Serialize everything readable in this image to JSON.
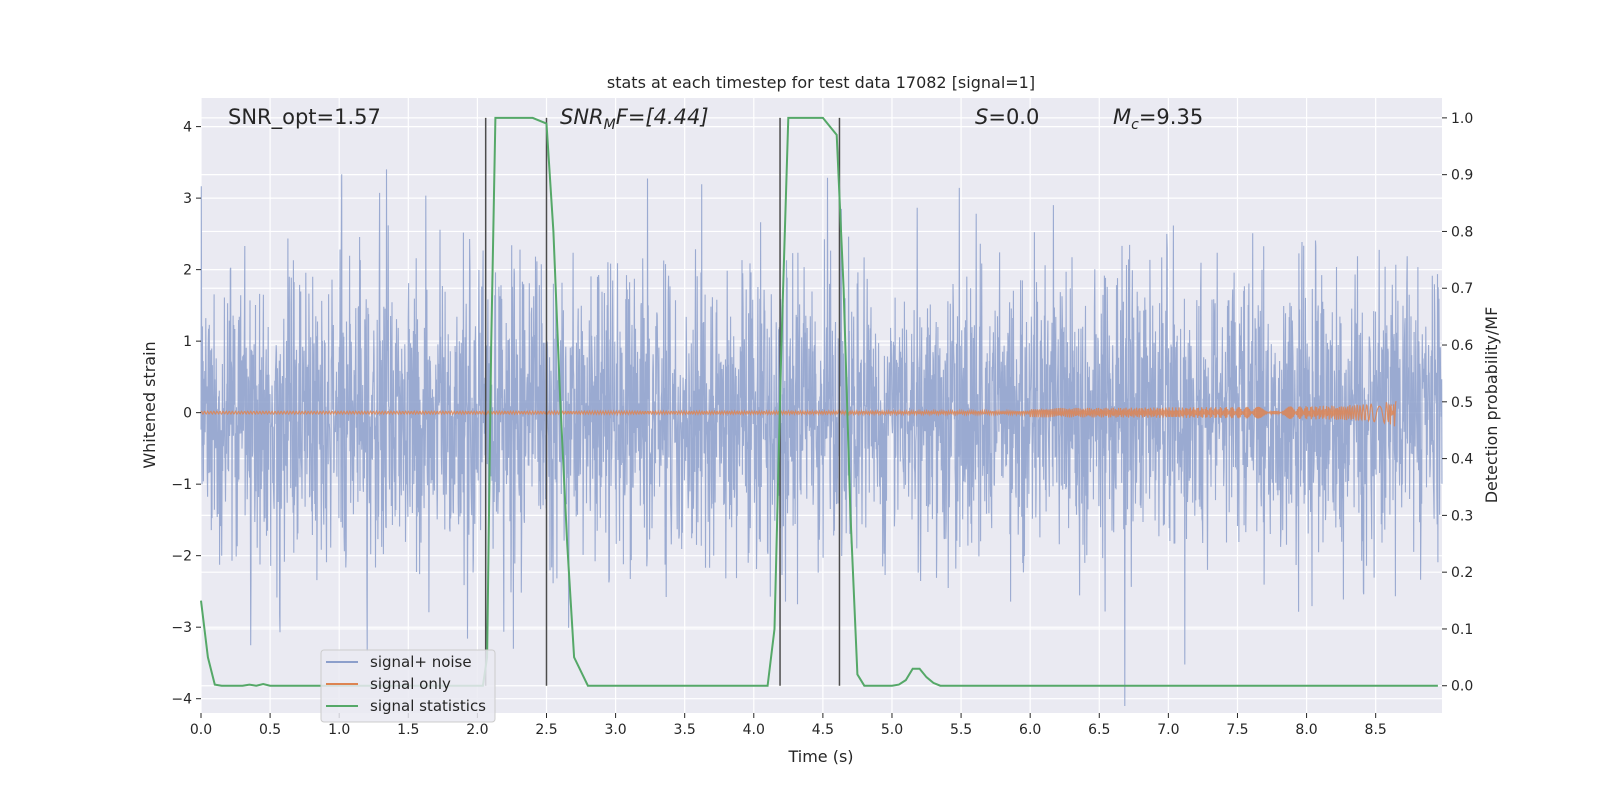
{
  "chart_data": {
    "type": "line",
    "title": "stats at each timestep for test data 17082 [signal=1]",
    "xlabel": "Time (s)",
    "ylabel": "Whitened strain",
    "y2label": "Detection probability/MF",
    "xlim": [
      0.0,
      8.98
    ],
    "ylim": [
      -4.2,
      4.4
    ],
    "y2lim": [
      -0.048,
      1.035
    ],
    "xticks": [
      "0.0",
      "0.5",
      "1.0",
      "1.5",
      "2.0",
      "2.5",
      "3.0",
      "3.5",
      "4.0",
      "4.5",
      "5.0",
      "5.5",
      "6.0",
      "6.5",
      "7.0",
      "7.5",
      "8.0",
      "8.5"
    ],
    "yticks": [
      "4",
      "3",
      "2",
      "1",
      "0",
      "−1",
      "−2",
      "−3",
      "−4"
    ],
    "y2ticks": [
      "1.0",
      "0.9",
      "0.8",
      "0.7",
      "0.6",
      "0.5",
      "0.4",
      "0.3",
      "0.2",
      "0.1",
      "0.0"
    ],
    "grid": true,
    "legend_position": "lower-left",
    "colors": {
      "noise": "#8c9fcb",
      "signal": "#dd8452",
      "stats": "#55a868",
      "vlines": "#4c4c4c",
      "plot_bg": "#eaeaf2",
      "grid": "#ffffff"
    },
    "annotations": {
      "snr_opt": "SNR_opt=1.57",
      "snr_mf_base": "SNR",
      "snr_mf_sub": "M",
      "snr_mf_rest": "F=[4.44]",
      "s_base": "S",
      "s_rest": "=0.0",
      "mc_base": "M",
      "mc_sub": "c",
      "mc_rest": "=9.35"
    },
    "series": [
      {
        "name": "signal+ noise",
        "style": "noise band",
        "amplitude_typical": 1.5,
        "amplitude_max": 4.3
      },
      {
        "name": "signal only",
        "style": "chirp",
        "x_end": 8.65,
        "peak_amplitude": 0.22
      },
      {
        "name": "signal statistics",
        "axis": "right",
        "x": [
          0.0,
          0.05,
          0.1,
          0.15,
          0.2,
          0.25,
          0.3,
          0.35,
          0.4,
          0.45,
          0.5,
          0.6,
          0.8,
          1.0,
          1.2,
          1.4,
          1.6,
          1.8,
          2.0,
          2.04,
          2.07,
          2.1,
          2.13,
          2.2,
          2.3,
          2.4,
          2.5,
          2.55,
          2.6,
          2.65,
          2.7,
          2.8,
          3.0,
          3.5,
          4.0,
          4.1,
          4.15,
          4.2,
          4.25,
          4.3,
          4.4,
          4.5,
          4.6,
          4.65,
          4.7,
          4.75,
          4.8,
          4.9,
          5.0,
          5.05,
          5.1,
          5.15,
          5.2,
          5.25,
          5.3,
          5.35,
          5.5,
          6.0,
          7.0,
          8.0,
          8.5,
          8.95
        ],
        "y": [
          0.15,
          0.05,
          0.002,
          0.0,
          0.0,
          0.0,
          0.0,
          0.002,
          0.0,
          0.003,
          0.0,
          0.0,
          0.0,
          0.0,
          0.0,
          0.0,
          0.0,
          0.0,
          0.0,
          0.0,
          0.05,
          0.6,
          1.0,
          1.0,
          1.0,
          1.0,
          0.99,
          0.8,
          0.5,
          0.25,
          0.05,
          0.0,
          0.0,
          0.0,
          0.0,
          0.0,
          0.1,
          0.6,
          1.0,
          1.0,
          1.0,
          1.0,
          0.97,
          0.7,
          0.3,
          0.02,
          0.0,
          0.0,
          0.0,
          0.002,
          0.01,
          0.03,
          0.03,
          0.015,
          0.005,
          0.0,
          0.0,
          0.0,
          0.0,
          0.0,
          0.0,
          0.0
        ]
      }
    ],
    "vlines_x": [
      2.06,
      2.5,
      4.19,
      4.62
    ],
    "vlines_y2_range": [
      0.0,
      1.0
    ]
  }
}
